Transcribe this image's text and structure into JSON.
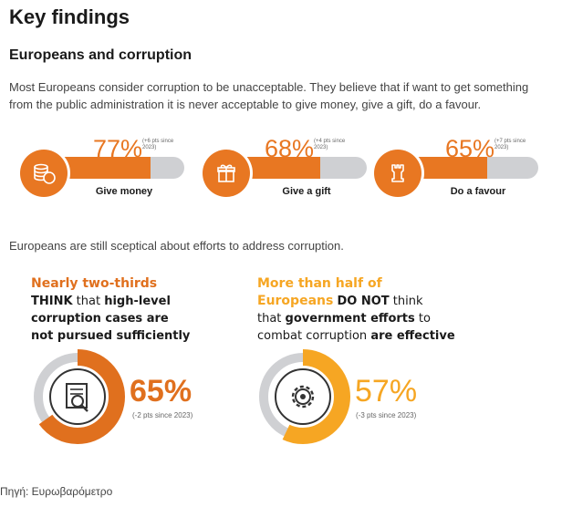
{
  "page": {
    "title": "Key findings",
    "subtitle": "Europeans and corruption",
    "intro": "Most Europeans consider corruption to be unacceptable. They believe that if want to get something from the public administration it is never acceptable to give money, give a gift, do a favour.",
    "section2": "Europeans are still sceptical about efforts to address corruption.",
    "source": "Πηγή: Ευρωβαρόμετρο"
  },
  "stats": [
    {
      "pct_label": "77%",
      "value": 77,
      "delta": "(+6 pts since 2023)",
      "label": "Give money",
      "icon": "coins-icon"
    },
    {
      "pct_label": "68%",
      "value": 68,
      "delta": "(+4 pts since 2023)",
      "label": "Give a gift",
      "icon": "gift-icon"
    },
    {
      "pct_label": "65%",
      "value": 65,
      "delta": "(+7 pts since 2023)",
      "label": "Do a favour",
      "icon": "chess-rook-icon"
    }
  ],
  "cards": [
    {
      "heading": "Nearly two-thirds",
      "line1_bold": "THINK",
      "line1_rest": " that ",
      "line1_bold2": "high-level",
      "line2_bold": "corruption cases are",
      "line3_bold": "not pursued sufficiently",
      "pct_label": "65%",
      "value": 65,
      "delta": "(-2 pts since 2023)",
      "icon": "document-search-icon",
      "color": "#e0701e"
    },
    {
      "heading_line1": "More than half of",
      "heading_line2": "Europeans",
      "heading_rest": "DO NOT",
      "heading_rest2": " think",
      "line2_pre": "that ",
      "line2_bold": "government efforts",
      "line2_rest": " to",
      "line3_pre": "combat corruption ",
      "line3_bold": "are effective",
      "pct_label": "57%",
      "value": 57,
      "delta": "(-3 pts since 2023)",
      "icon": "gear-icon",
      "color": "#f6a623"
    }
  ],
  "colors": {
    "accent": "#e87722",
    "accent_light": "#f6a623",
    "track": "#cfd0d3"
  }
}
